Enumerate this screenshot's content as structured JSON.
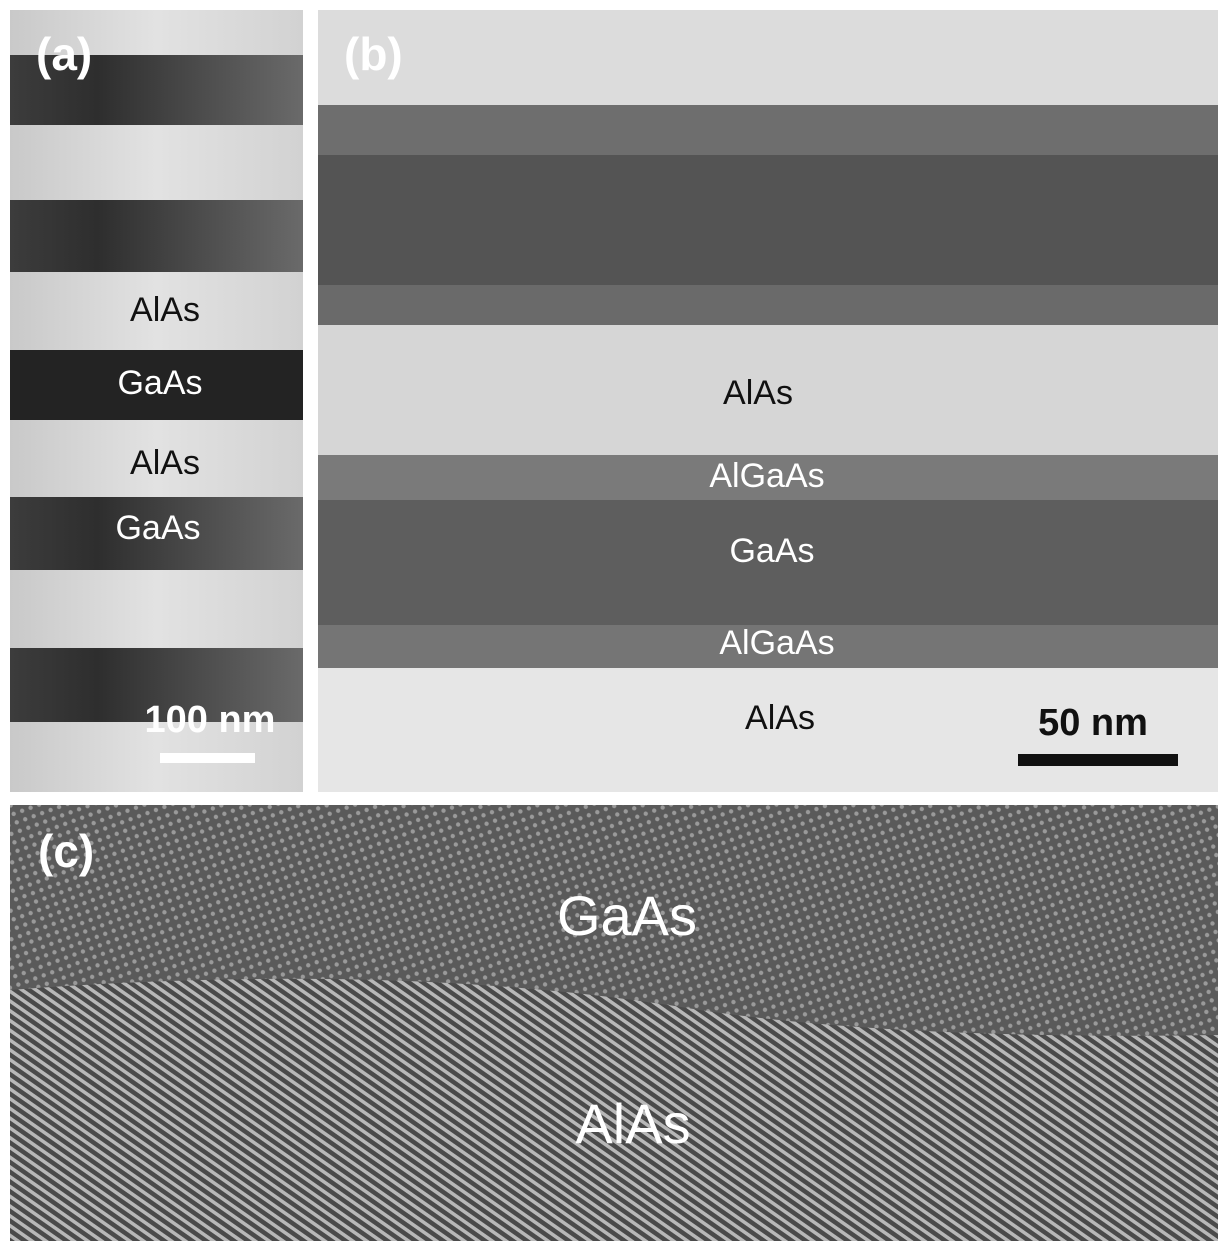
{
  "panels": [
    {
      "label": "(a)",
      "layers": [
        "AlAs",
        "GaAs",
        "AlAs",
        "GaAs"
      ],
      "scale_bar": "100 nm"
    },
    {
      "label": "(b)",
      "layers": [
        "AlAs",
        "AlGaAs",
        "GaAs",
        "AlGaAs",
        "AlAs"
      ],
      "scale_bar": "50 nm"
    },
    {
      "label": "(c)",
      "layers": [
        "GaAs",
        "AlAs"
      ]
    }
  ]
}
